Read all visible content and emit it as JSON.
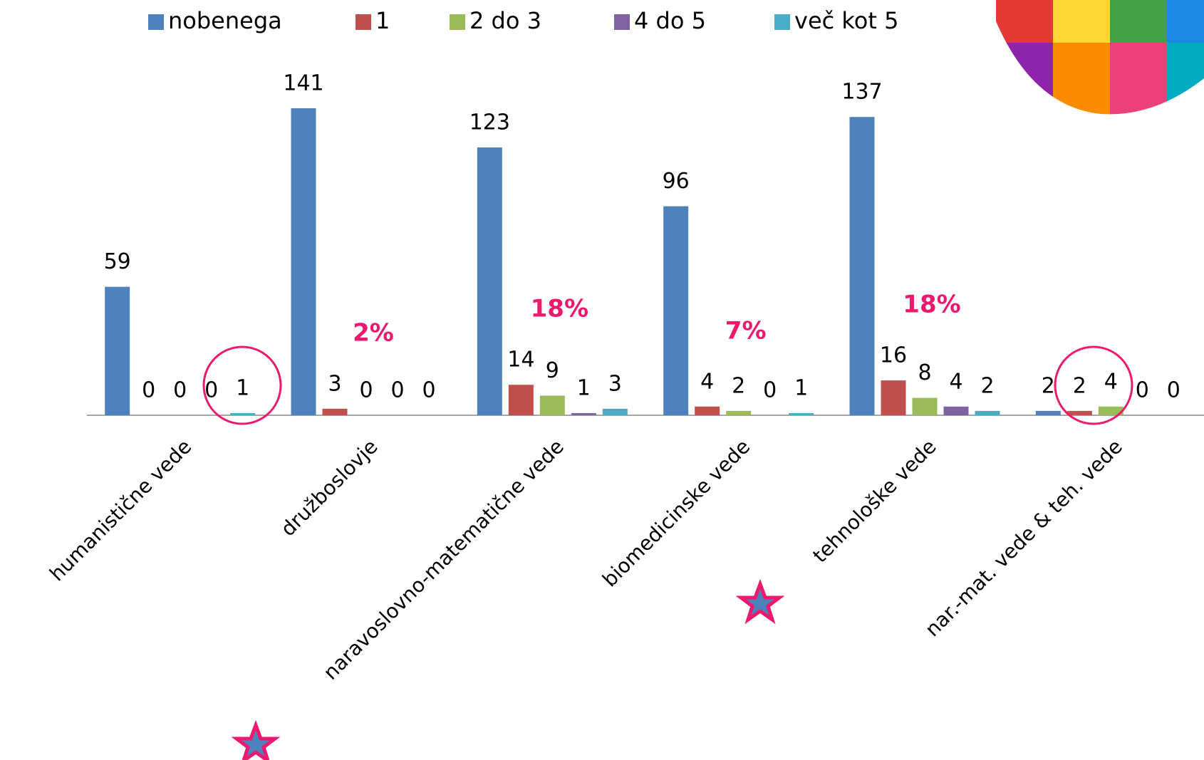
{
  "chart_data": {
    "type": "bar",
    "categories": [
      "humanistične vede",
      "družboslovje",
      "naravoslovno-matematične vede",
      "biomedicinske vede",
      "tehnološke vede",
      "nar.-mat. vede & teh. vede"
    ],
    "series": [
      {
        "name": "nobenega",
        "color": "#4f81bd",
        "values": [
          59,
          141,
          123,
          96,
          137,
          2
        ]
      },
      {
        "name": "1",
        "color": "#c0504d",
        "values": [
          0,
          3,
          14,
          4,
          16,
          2
        ]
      },
      {
        "name": "2 do 3",
        "color": "#9bbb59",
        "values": [
          0,
          0,
          9,
          2,
          8,
          4
        ]
      },
      {
        "name": "4 do 5",
        "color": "#8064a2",
        "values": [
          0,
          0,
          1,
          0,
          4,
          0
        ]
      },
      {
        "name": "več kot 5",
        "color": "#4bacc6",
        "values": [
          1,
          0,
          3,
          1,
          2,
          0
        ]
      }
    ],
    "annotations": [
      null,
      "2%",
      "18%",
      "7%",
      "18%",
      null
    ]
  }
}
